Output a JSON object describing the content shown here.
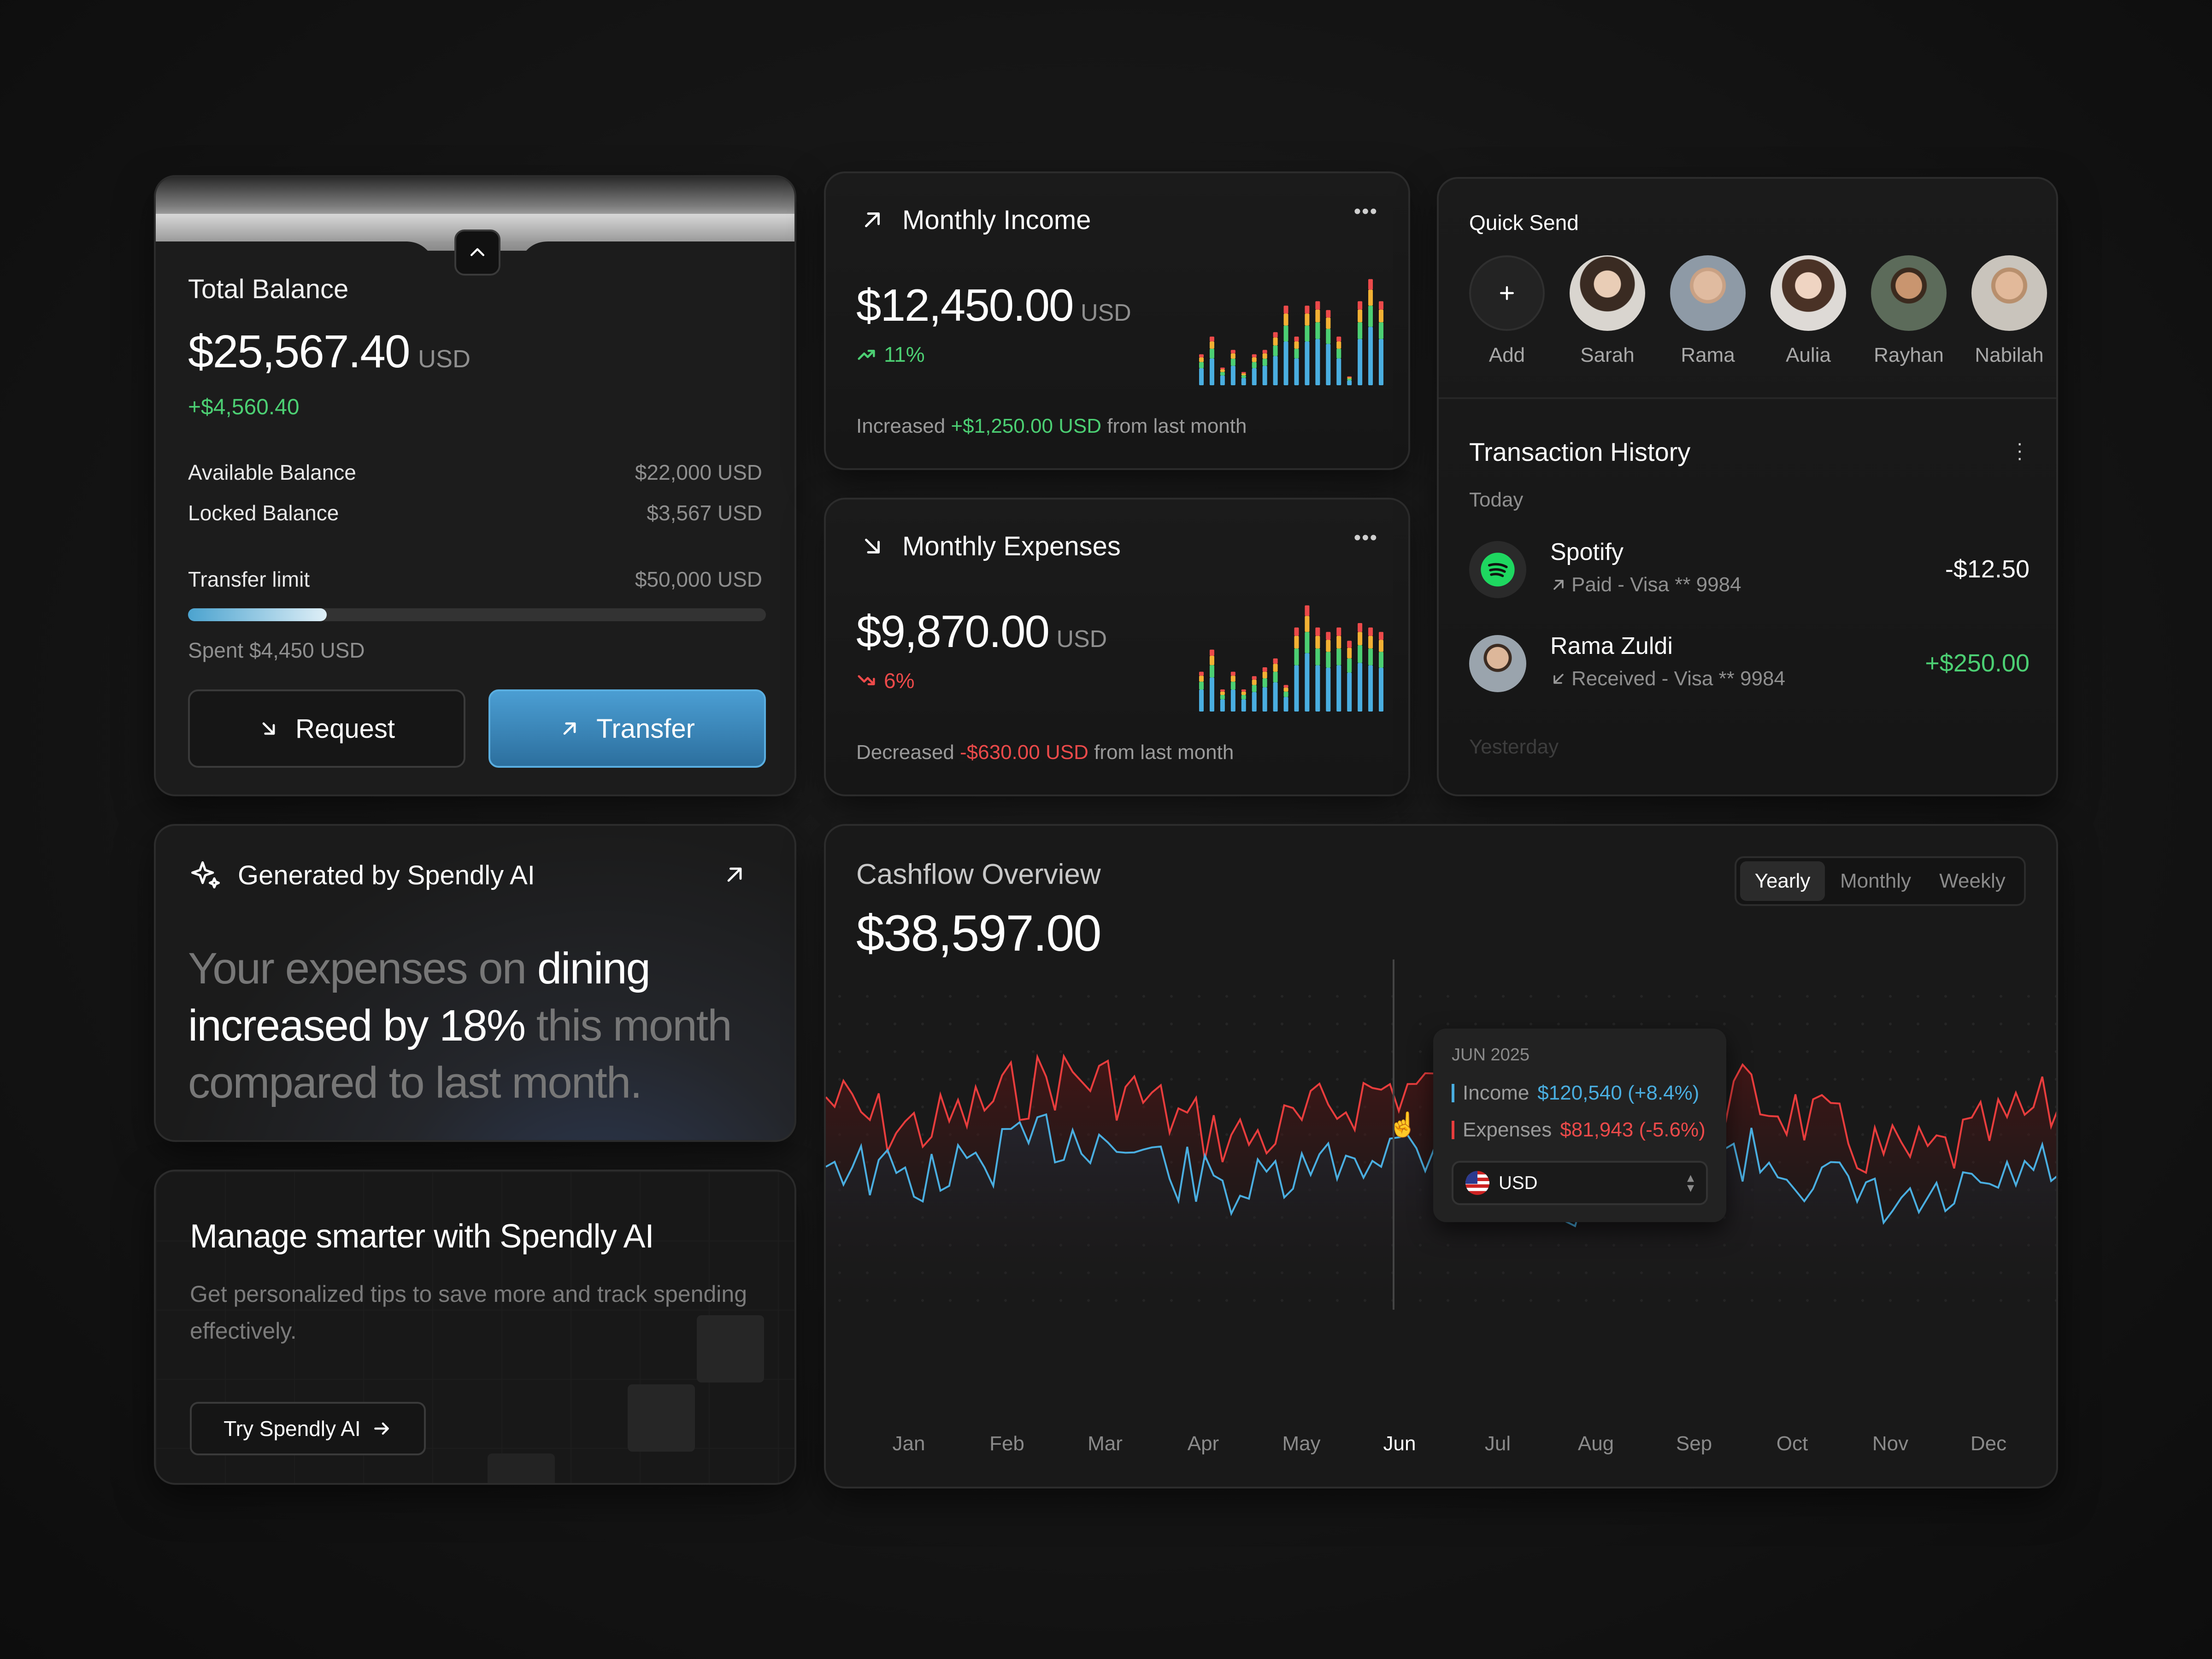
{
  "balance": {
    "title": "Total Balance",
    "amount": "$25,567.40",
    "currency": "USD",
    "change": "+$4,560.40",
    "available_label": "Available Balance",
    "available_value": "$22,000 USD",
    "locked_label": "Locked Balance",
    "locked_value": "$3,567 USD",
    "limit_label": "Transfer limit",
    "limit_value": "$50,000 USD",
    "limit_progress": 0.24,
    "spent": "Spent $4,450 USD",
    "request_label": "Request",
    "transfer_label": "Transfer"
  },
  "income": {
    "title": "Monthly Income",
    "amount": "$12,450.00",
    "currency": "USD",
    "change": "11%",
    "note_prefix": "Increased",
    "note_value": "+$1,250.00 USD",
    "note_suffix": "from last month",
    "bars": [
      0.35,
      0.55,
      0.2,
      0.4,
      0.15,
      0.35,
      0.4,
      0.6,
      0.9,
      0.55,
      0.9,
      0.95,
      0.85,
      0.55,
      0.1,
      0.95,
      1.2,
      0.95
    ]
  },
  "expenses": {
    "title": "Monthly Expenses",
    "amount": "$9,870.00",
    "currency": "USD",
    "change": "6%",
    "note_prefix": "Decreased",
    "note_value": "-$630.00 USD",
    "note_suffix": "from last month",
    "bars": [
      0.45,
      0.7,
      0.25,
      0.45,
      0.25,
      0.4,
      0.5,
      0.6,
      0.3,
      0.95,
      1.2,
      0.95,
      0.9,
      0.95,
      0.8,
      1.0,
      0.95,
      0.9
    ]
  },
  "quick_send": {
    "title": "Quick Send",
    "add_label": "Add",
    "contacts": [
      "Sarah",
      "Rama",
      "Aulia",
      "Rayhan",
      "Nabilah"
    ]
  },
  "transactions": {
    "title": "Transaction History",
    "today_label": "Today",
    "yesterday_label": "Yesterday",
    "items": [
      {
        "name": "Spotify",
        "detail": "Paid - Visa ** 9984",
        "amount": "-$12.50"
      },
      {
        "name": "Rama Zuldi",
        "detail": "Received - Visa ** 9984",
        "amount": "+$250.00"
      }
    ]
  },
  "ai_insight": {
    "title": "Generated by Spendly AI",
    "text_1": "Your expenses on ",
    "text_2": "dining",
    "text_3": "increased by 18%",
    "text_4": " this month",
    "text_5": "compared to last month."
  },
  "promo": {
    "title": "Manage smarter with Spendly AI",
    "desc": "Get personalized tips to save more and track spending effectively.",
    "button": "Try Spendly AI"
  },
  "cashflow": {
    "title": "Cashflow Overview",
    "amount": "$38,597.00",
    "tabs": [
      "Yearly",
      "Monthly",
      "Weekly"
    ],
    "active_tab": "Yearly",
    "months": [
      "Jan",
      "Feb",
      "Mar",
      "Apr",
      "May",
      "Jun",
      "Jul",
      "Aug",
      "Sep",
      "Oct",
      "Nov",
      "Dec"
    ],
    "active_month": "Jun",
    "tooltip": {
      "date": "JUN 2025",
      "income_label": "Income",
      "income_value": "$120,540 (+8.4%)",
      "expenses_label": "Expenses",
      "expenses_value": "$81,943 (-5.6%)",
      "currency": "USD"
    }
  },
  "colors": {
    "income_line": "#4aaee0",
    "expense_line": "#e83d3d",
    "positive": "#4ccf73",
    "negative": "#ec4a4a",
    "accent_button": "#3c86b8"
  }
}
